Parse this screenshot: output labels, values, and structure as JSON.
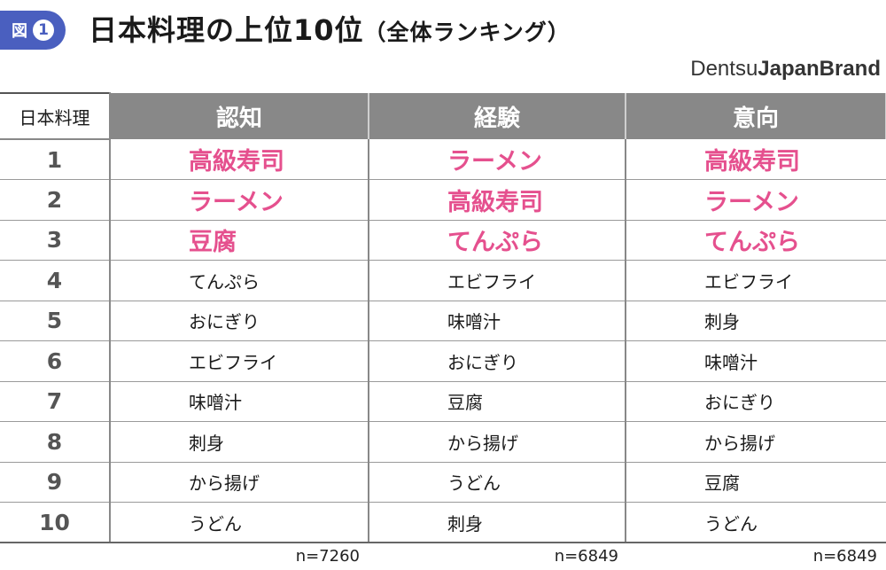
{
  "header": {
    "badge_label": "図",
    "badge_number": "1",
    "title_main": "日本料理の上位10位",
    "title_sub": "（全体ランキング）",
    "brand_light": "Dentsu",
    "brand_bold": "JapanBrand"
  },
  "table": {
    "corner": "日本料理",
    "columns": [
      "認知",
      "経験",
      "意向"
    ],
    "rows": [
      {
        "rank": "1",
        "cells": [
          "高級寿司",
          "ラーメン",
          "高級寿司"
        ]
      },
      {
        "rank": "2",
        "cells": [
          "ラーメン",
          "高級寿司",
          "ラーメン"
        ]
      },
      {
        "rank": "3",
        "cells": [
          "豆腐",
          "てんぷら",
          "てんぷら"
        ]
      },
      {
        "rank": "4",
        "cells": [
          "てんぷら",
          "エビフライ",
          "エビフライ"
        ]
      },
      {
        "rank": "5",
        "cells": [
          "おにぎり",
          "味噌汁",
          "刺身"
        ]
      },
      {
        "rank": "6",
        "cells": [
          "エビフライ",
          "おにぎり",
          "味噌汁"
        ]
      },
      {
        "rank": "7",
        "cells": [
          "味噌汁",
          "豆腐",
          "おにぎり"
        ]
      },
      {
        "rank": "8",
        "cells": [
          "刺身",
          "から揚げ",
          "から揚げ"
        ]
      },
      {
        "rank": "9",
        "cells": [
          "から揚げ",
          "うどん",
          "豆腐"
        ]
      },
      {
        "rank": "10",
        "cells": [
          "うどん",
          "刺身",
          "うどん"
        ]
      }
    ],
    "sample_sizes": [
      "n=7260",
      "n=6849",
      "n=6849"
    ]
  },
  "colors": {
    "highlight": "#e5508e",
    "header_bg": "#888888",
    "badge_bg": "#4a5fbf"
  }
}
